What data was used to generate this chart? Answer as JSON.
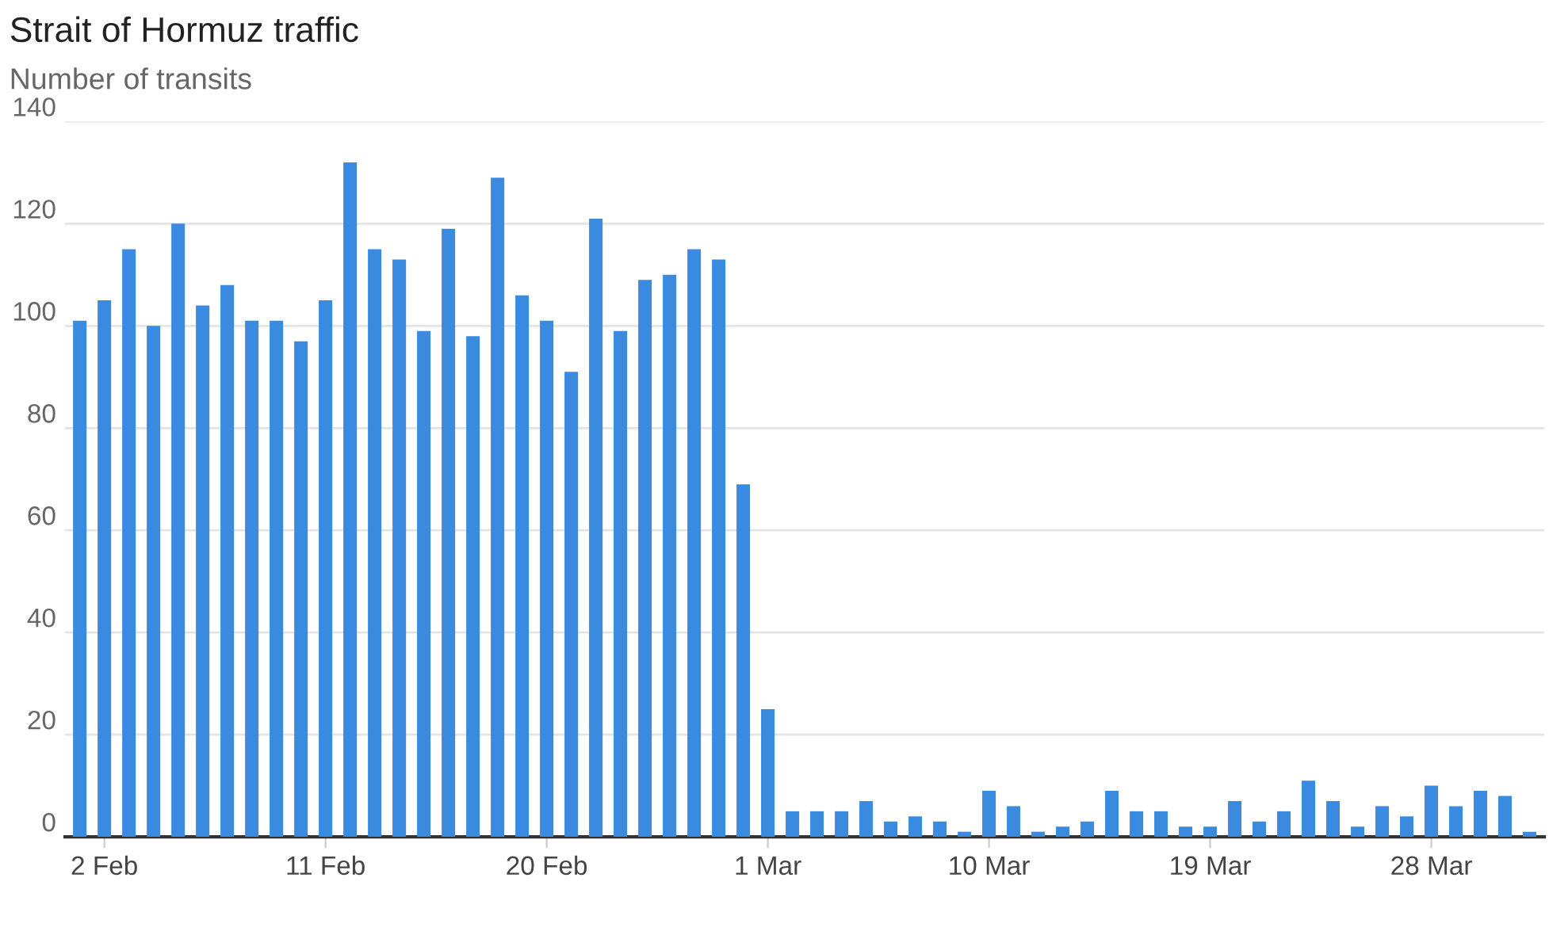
{
  "chart_data": {
    "type": "bar",
    "title": "Strait of Hormuz traffic",
    "ylabel": "Number of transits",
    "categories": [
      null,
      "2 Feb",
      null,
      null,
      null,
      null,
      null,
      null,
      null,
      null,
      "11 Feb",
      null,
      null,
      null,
      null,
      null,
      null,
      null,
      null,
      "20 Feb",
      null,
      null,
      null,
      null,
      null,
      null,
      null,
      null,
      "1 Mar",
      null,
      null,
      null,
      null,
      null,
      null,
      null,
      null,
      "10 Mar",
      null,
      null,
      null,
      null,
      null,
      null,
      null,
      null,
      "19 Mar",
      null,
      null,
      null,
      null,
      null,
      null,
      null,
      null,
      "28 Mar",
      null,
      null,
      null,
      null
    ],
    "values": [
      101,
      105,
      115,
      100,
      120,
      104,
      108,
      101,
      101,
      97,
      105,
      132,
      115,
      113,
      99,
      119,
      98,
      129,
      106,
      101,
      91,
      121,
      99,
      109,
      110,
      115,
      113,
      69,
      25,
      5,
      5,
      5,
      7,
      3,
      4,
      3,
      1,
      9,
      6,
      1,
      2,
      3,
      9,
      5,
      5,
      2,
      2,
      7,
      3,
      5,
      11,
      7,
      2,
      6,
      4,
      10,
      6,
      9,
      8,
      1
    ],
    "color": "#3a8be0",
    "ylim": [
      0,
      140
    ],
    "yticks": [
      0,
      20,
      40,
      60,
      80,
      100,
      120,
      140
    ],
    "grid": "y"
  }
}
